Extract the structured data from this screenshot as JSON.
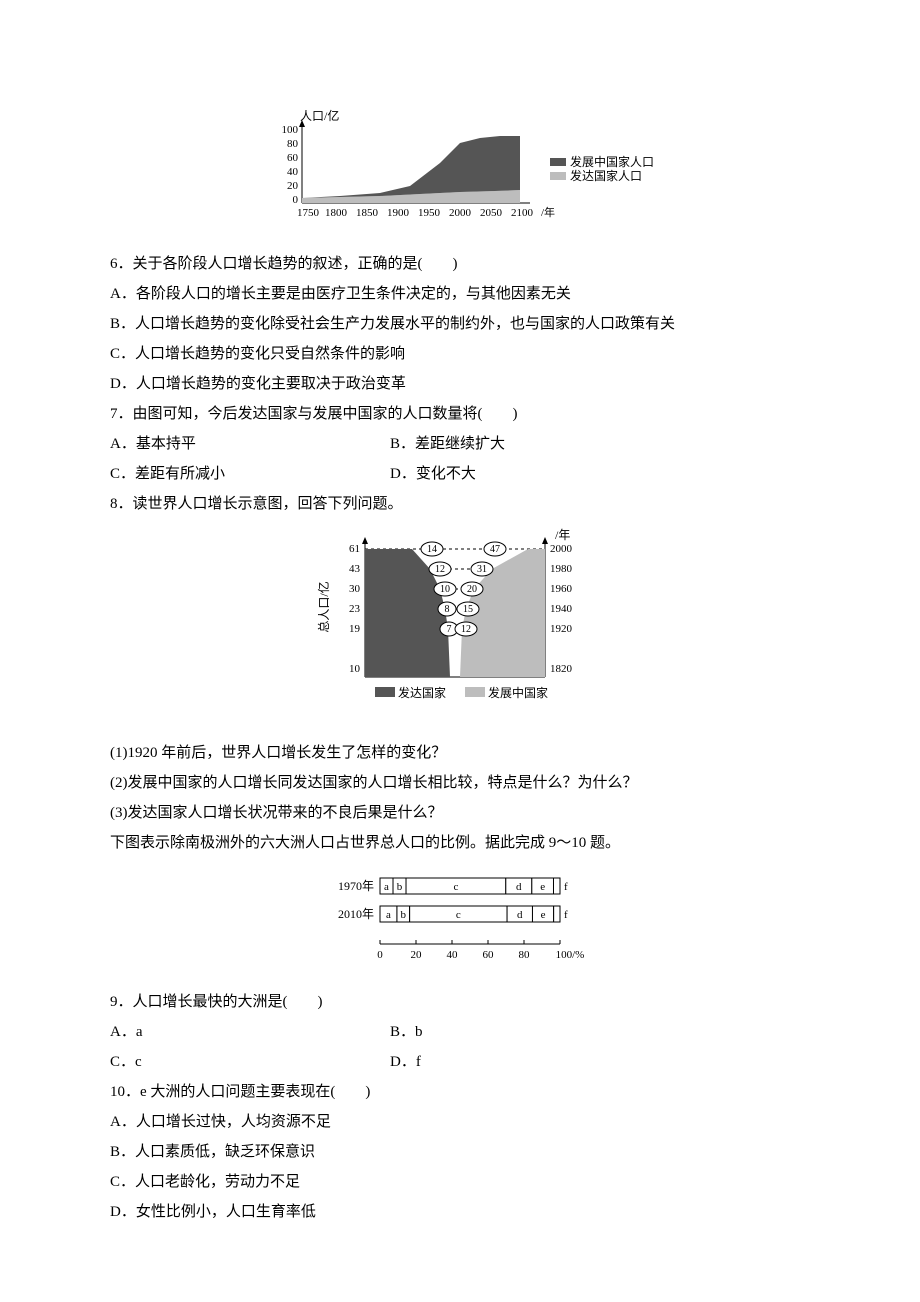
{
  "chart1": {
    "type": "area",
    "ylabel": "人口/亿",
    "xlabel": "/年",
    "yticks": [
      "0",
      "20",
      "40",
      "60",
      "80",
      "100"
    ],
    "xticks": [
      "1750",
      "1800",
      "1850",
      "1900",
      "1950",
      "2000",
      "2050",
      "2100"
    ],
    "legend1": "发展中国家人口",
    "legend2": "发达国家人口",
    "fill_top": "#555555",
    "fill_bottom": "#bdbdbd",
    "font_size": 11
  },
  "q6": {
    "stem": "6．关于各阶段人口增长趋势的叙述，正确的是(　　)",
    "A": "A．各阶段人口的增长主要是由医疗卫生条件决定的，与其他因素无关",
    "B": "B．人口增长趋势的变化除受社会生产力发展水平的制约外，也与国家的人口政策有关",
    "C": "C．人口增长趋势的变化只受自然条件的影响",
    "D": "D．人口增长趋势的变化主要取决于政治变革"
  },
  "q7": {
    "stem": "7．由图可知，今后发达国家与发展中国家的人口数量将(　　)",
    "A": "A．基本持平",
    "B": "B．差距继续扩大",
    "C": "C．差距有所减小",
    "D": "D．变化不大"
  },
  "q8": {
    "stem": "8．读世界人口增长示意图，回答下列问题。",
    "sub1": "(1)1920 年前后，世界人口增长发生了怎样的变化？",
    "sub2": "(2)发展中国家的人口增长同发达国家的人口增长相比较，特点是什么？为什么？",
    "sub3": "(3)发达国家人口增长状况带来的不良后果是什么？"
  },
  "chart2": {
    "type": "funnel-bar",
    "ylabel": "总人口/亿",
    "xlabel": "/年",
    "left_ticks": [
      "61",
      "43",
      "30",
      "23",
      "19",
      "10"
    ],
    "mid_pairs": [
      [
        "14",
        "47"
      ],
      [
        "12",
        "31"
      ],
      [
        "10",
        "20"
      ],
      [
        "8",
        "15"
      ],
      [
        "7",
        "12"
      ]
    ],
    "right_years": [
      "2000",
      "1980",
      "1960",
      "1940",
      "1920",
      "1820"
    ],
    "legend_left": "发达国家",
    "legend_right": "发展中国家",
    "fill_left": "#555555",
    "fill_right": "#bdbdbd",
    "font_size": 11
  },
  "intro910": "下图表示除南极洲外的六大洲人口占世界总人口的比例。据此完成 9～10 题。",
  "chart3": {
    "type": "stacked-bar",
    "rows": [
      {
        "label": "1970年",
        "segs": [
          6,
          6,
          46,
          12,
          10,
          3
        ],
        "letters": [
          "a",
          "b",
          "c",
          "d",
          "e",
          "f"
        ]
      },
      {
        "label": "2010年",
        "segs": [
          8,
          6,
          46,
          12,
          10,
          3
        ],
        "letters": [
          "a",
          "b",
          "c",
          "d",
          "e",
          "f"
        ]
      }
    ],
    "xticks": [
      "0",
      "20",
      "40",
      "60",
      "80",
      "100/%"
    ],
    "font_size": 11
  },
  "q9": {
    "stem": "9．人口增长最快的大洲是(　　)",
    "A": "A．a",
    "B": "B．b",
    "C": "C．c",
    "D": "D．f"
  },
  "q10": {
    "stem": "10．e 大洲的人口问题主要表现在(　　)",
    "A": "A．人口增长过快，人均资源不足",
    "B": "B．人口素质低，缺乏环保意识",
    "C": "C．人口老龄化，劳动力不足",
    "D": "D．女性比例小，人口生育率低"
  }
}
